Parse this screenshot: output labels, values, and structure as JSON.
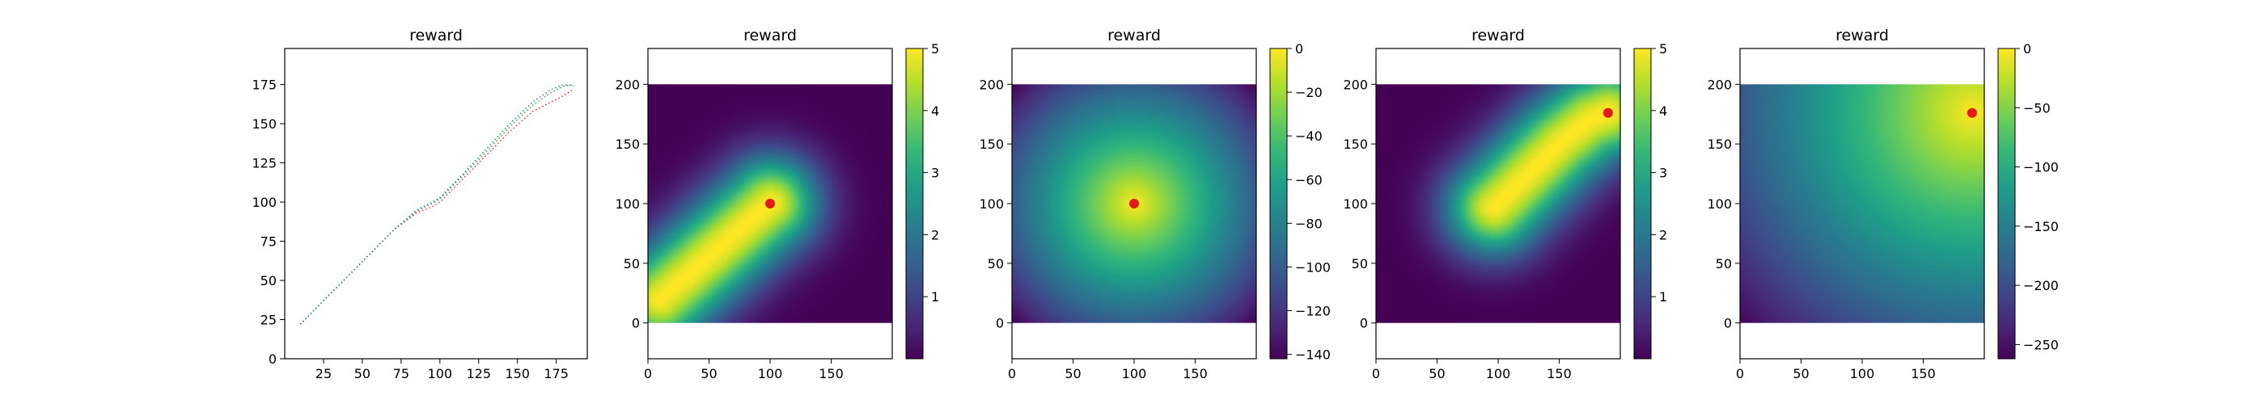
{
  "chart_data": [
    {
      "type": "line",
      "title": "reward",
      "xlim": [
        0,
        195
      ],
      "ylim": [
        0,
        198
      ],
      "x_ticks": [
        25,
        50,
        75,
        100,
        125,
        150,
        175
      ],
      "y_ticks": [
        0,
        25,
        50,
        75,
        100,
        125,
        150,
        175
      ],
      "grid": false,
      "series": [
        {
          "color": "#d62728",
          "style": "dotted",
          "x": [
            10,
            25,
            40,
            55,
            70,
            85,
            95,
            100,
            115,
            130,
            145,
            160,
            172,
            180,
            186
          ],
          "y": [
            22,
            37,
            52,
            67,
            82,
            93,
            97,
            100,
            115,
            130,
            145,
            158,
            164,
            168,
            172
          ]
        },
        {
          "color": "#2ca02c",
          "style": "dotted",
          "x": [
            10,
            25,
            40,
            55,
            70,
            85,
            95,
            100,
            115,
            130,
            145,
            160,
            172,
            180,
            186
          ],
          "y": [
            22,
            37,
            52,
            67,
            82,
            94,
            99,
            102,
            117,
            132,
            148,
            162,
            170,
            174,
            175
          ]
        },
        {
          "color": "#1f77b4",
          "style": "dotted",
          "x": [
            10,
            25,
            40,
            55,
            70,
            85,
            95,
            100,
            115,
            130,
            145,
            160,
            172,
            180,
            186
          ],
          "y": [
            22,
            37,
            52,
            67,
            82,
            95,
            100,
            103,
            118,
            134,
            150,
            164,
            172,
            175,
            174
          ]
        }
      ]
    },
    {
      "type": "heatmap",
      "title": "reward",
      "mode": "path",
      "path": [
        [
          10,
          20
        ],
        [
          100,
          100
        ]
      ],
      "sigma": 28,
      "peak": 5,
      "xlim": [
        0,
        200
      ],
      "ylim": [
        -30,
        230
      ],
      "x_ticks": [
        0,
        50,
        100,
        150
      ],
      "y_ticks": [
        0,
        50,
        100,
        150,
        200
      ],
      "target": [
        100,
        100
      ],
      "colorbar": {
        "min": 0,
        "max": 5,
        "ticks": [
          1,
          2,
          3,
          4,
          5
        ]
      }
    },
    {
      "type": "heatmap",
      "title": "reward",
      "mode": "distance",
      "center": [
        100,
        100
      ],
      "xlim": [
        0,
        200
      ],
      "ylim": [
        -30,
        230
      ],
      "x_ticks": [
        0,
        50,
        100,
        150
      ],
      "y_ticks": [
        0,
        50,
        100,
        150,
        200
      ],
      "target": [
        100,
        100
      ],
      "colorbar": {
        "min": -142,
        "max": 0,
        "ticks": [
          0,
          -20,
          -40,
          -60,
          -80,
          -100,
          -120,
          -140
        ]
      }
    },
    {
      "type": "heatmap",
      "title": "reward",
      "mode": "path",
      "path": [
        [
          97,
          97
        ],
        [
          150,
          150
        ],
        [
          175,
          170
        ],
        [
          190,
          176
        ]
      ],
      "sigma": 28,
      "peak": 5,
      "xlim": [
        0,
        200
      ],
      "ylim": [
        -30,
        230
      ],
      "x_ticks": [
        0,
        50,
        100,
        150
      ],
      "y_ticks": [
        0,
        50,
        100,
        150,
        200
      ],
      "target": [
        190,
        176
      ],
      "colorbar": {
        "min": 0,
        "max": 5,
        "ticks": [
          1,
          2,
          3,
          4,
          5
        ]
      }
    },
    {
      "type": "heatmap",
      "title": "reward",
      "mode": "distance",
      "center": [
        190,
        176
      ],
      "xlim": [
        0,
        200
      ],
      "ylim": [
        -30,
        230
      ],
      "x_ticks": [
        0,
        50,
        100,
        150
      ],
      "y_ticks": [
        0,
        50,
        100,
        150,
        200
      ],
      "target": [
        190,
        176
      ],
      "colorbar": {
        "min": -262,
        "max": 0,
        "ticks": [
          0,
          -50,
          -100,
          -150,
          -200,
          -250
        ]
      }
    }
  ],
  "colors": {
    "target": "#e31a1c"
  }
}
